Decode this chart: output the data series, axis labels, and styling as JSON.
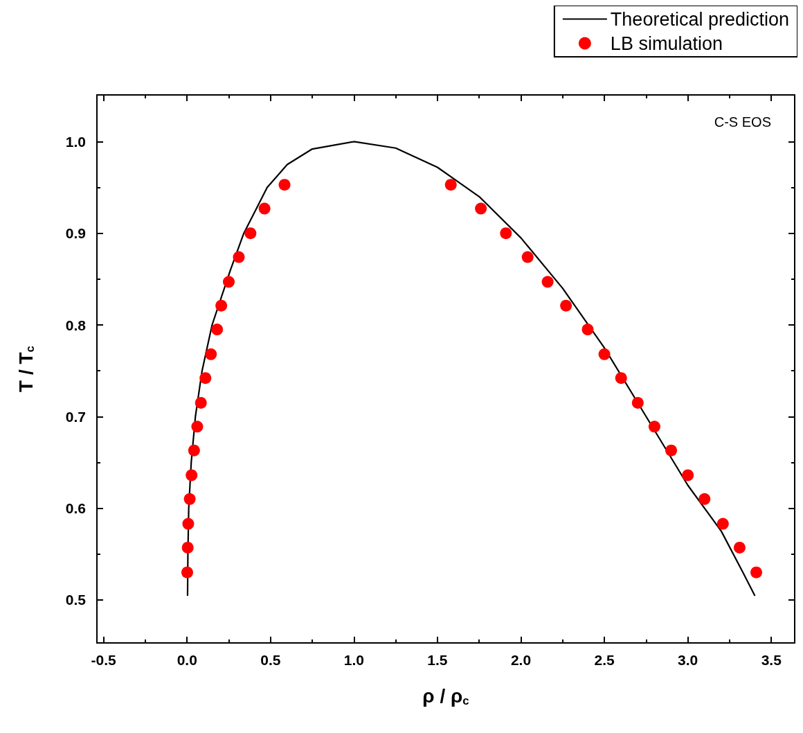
{
  "chart_data": {
    "type": "scatter",
    "xlabel": "ρ / ρ$_{c}$",
    "ylabel": "T / T$_{c}$",
    "annotations": [
      "C-S EOS"
    ],
    "xlim": [
      -0.54,
      3.64
    ],
    "ylim": [
      0.453,
      1.051
    ],
    "xticks": [
      -0.5,
      {
        "value": 0,
        "label": "0.0"
      },
      0.5,
      {
        "value": 1,
        "label": "1.0"
      },
      1.5,
      {
        "value": 2,
        "label": "2.0"
      },
      2.5,
      {
        "value": 3,
        "label": "3.0"
      },
      3.5
    ],
    "yticks": [
      0.5,
      0.6,
      0.7,
      0.8,
      0.9,
      {
        "value": 1,
        "label": "1.0"
      }
    ],
    "grid": false,
    "legend": "top right",
    "series": [
      {
        "name": "Theoretical prediction",
        "type": "line",
        "color": "#000000",
        "marker": "none",
        "line_style": "solid",
        "x": [
          0.003,
          0.005,
          0.01,
          0.025,
          0.05,
          0.09,
          0.15,
          0.26,
          0.34,
          0.48,
          0.6,
          0.75,
          1.0,
          1.25,
          1.5,
          1.75,
          2.0,
          2.25,
          2.5,
          2.75,
          3.0,
          3.2,
          3.33,
          3.4
        ],
        "values": [
          0.505,
          0.55,
          0.6,
          0.65,
          0.7,
          0.75,
          0.8,
          0.86,
          0.9,
          0.95,
          0.975,
          0.992,
          1.0,
          0.993,
          0.972,
          0.94,
          0.895,
          0.84,
          0.775,
          0.7,
          0.625,
          0.575,
          0.53,
          0.505
        ]
      },
      {
        "name": "LB simulation",
        "color": "#ff0000",
        "marker": "circle",
        "x": [
          0.001,
          0.004,
          0.007,
          0.016,
          0.027,
          0.042,
          0.061,
          0.083,
          0.11,
          0.143,
          0.18,
          0.205,
          0.25,
          0.31,
          0.38,
          0.464,
          0.584,
          1.58,
          1.76,
          1.91,
          2.04,
          2.16,
          2.27,
          2.4,
          2.5,
          2.6,
          2.7,
          2.8,
          2.9,
          3.0,
          3.1,
          3.21,
          3.31,
          3.41
        ],
        "values": [
          0.53,
          0.557,
          0.583,
          0.61,
          0.636,
          0.663,
          0.689,
          0.715,
          0.742,
          0.768,
          0.795,
          0.821,
          0.847,
          0.874,
          0.9,
          0.927,
          0.953,
          0.953,
          0.927,
          0.9,
          0.874,
          0.847,
          0.821,
          0.795,
          0.768,
          0.742,
          0.715,
          0.689,
          0.663,
          0.636,
          0.61,
          0.583,
          0.557,
          0.53
        ]
      }
    ]
  }
}
